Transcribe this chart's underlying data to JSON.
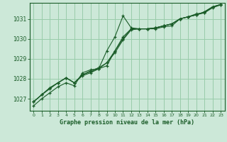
{
  "background_color": "#cce8d8",
  "grid_color": "#99ccaa",
  "line_color": "#1a5c28",
  "title": "Graphe pression niveau de la mer (hPa)",
  "xlim": [
    -0.5,
    23.5
  ],
  "ylim": [
    1026.4,
    1031.8
  ],
  "yticks": [
    1027,
    1028,
    1029,
    1030,
    1031
  ],
  "xticks": [
    0,
    1,
    2,
    3,
    4,
    5,
    6,
    7,
    8,
    9,
    10,
    11,
    12,
    13,
    14,
    15,
    16,
    17,
    18,
    19,
    20,
    21,
    22,
    23
  ],
  "series": [
    [
      1026.65,
      1027.0,
      1027.3,
      1027.6,
      1027.8,
      1027.65,
      1028.3,
      1028.45,
      1028.5,
      1029.4,
      1030.1,
      1031.15,
      1030.55,
      1030.5,
      1030.5,
      1030.5,
      1030.6,
      1030.65,
      1031.0,
      1031.1,
      1031.25,
      1031.3,
      1031.6,
      1031.7
    ],
    [
      1026.85,
      1027.2,
      1027.55,
      1027.8,
      1028.05,
      1027.8,
      1028.15,
      1028.3,
      1028.5,
      1028.65,
      1029.4,
      1030.1,
      1030.5,
      1030.5,
      1030.5,
      1030.55,
      1030.65,
      1030.75,
      1031.0,
      1031.1,
      1031.2,
      1031.35,
      1031.6,
      1031.72
    ],
    [
      1026.85,
      1027.2,
      1027.5,
      1027.8,
      1028.05,
      1027.8,
      1028.2,
      1028.35,
      1028.5,
      1028.8,
      1029.4,
      1030.0,
      1030.5,
      1030.5,
      1030.5,
      1030.55,
      1030.65,
      1030.75,
      1031.0,
      1031.1,
      1031.2,
      1031.35,
      1031.6,
      1031.72
    ],
    [
      1026.85,
      1027.2,
      1027.55,
      1027.8,
      1028.05,
      1027.8,
      1028.2,
      1028.4,
      1028.55,
      1028.8,
      1029.3,
      1029.95,
      1030.45,
      1030.5,
      1030.5,
      1030.55,
      1030.65,
      1030.75,
      1031.0,
      1031.1,
      1031.2,
      1031.3,
      1031.55,
      1031.7
    ]
  ]
}
